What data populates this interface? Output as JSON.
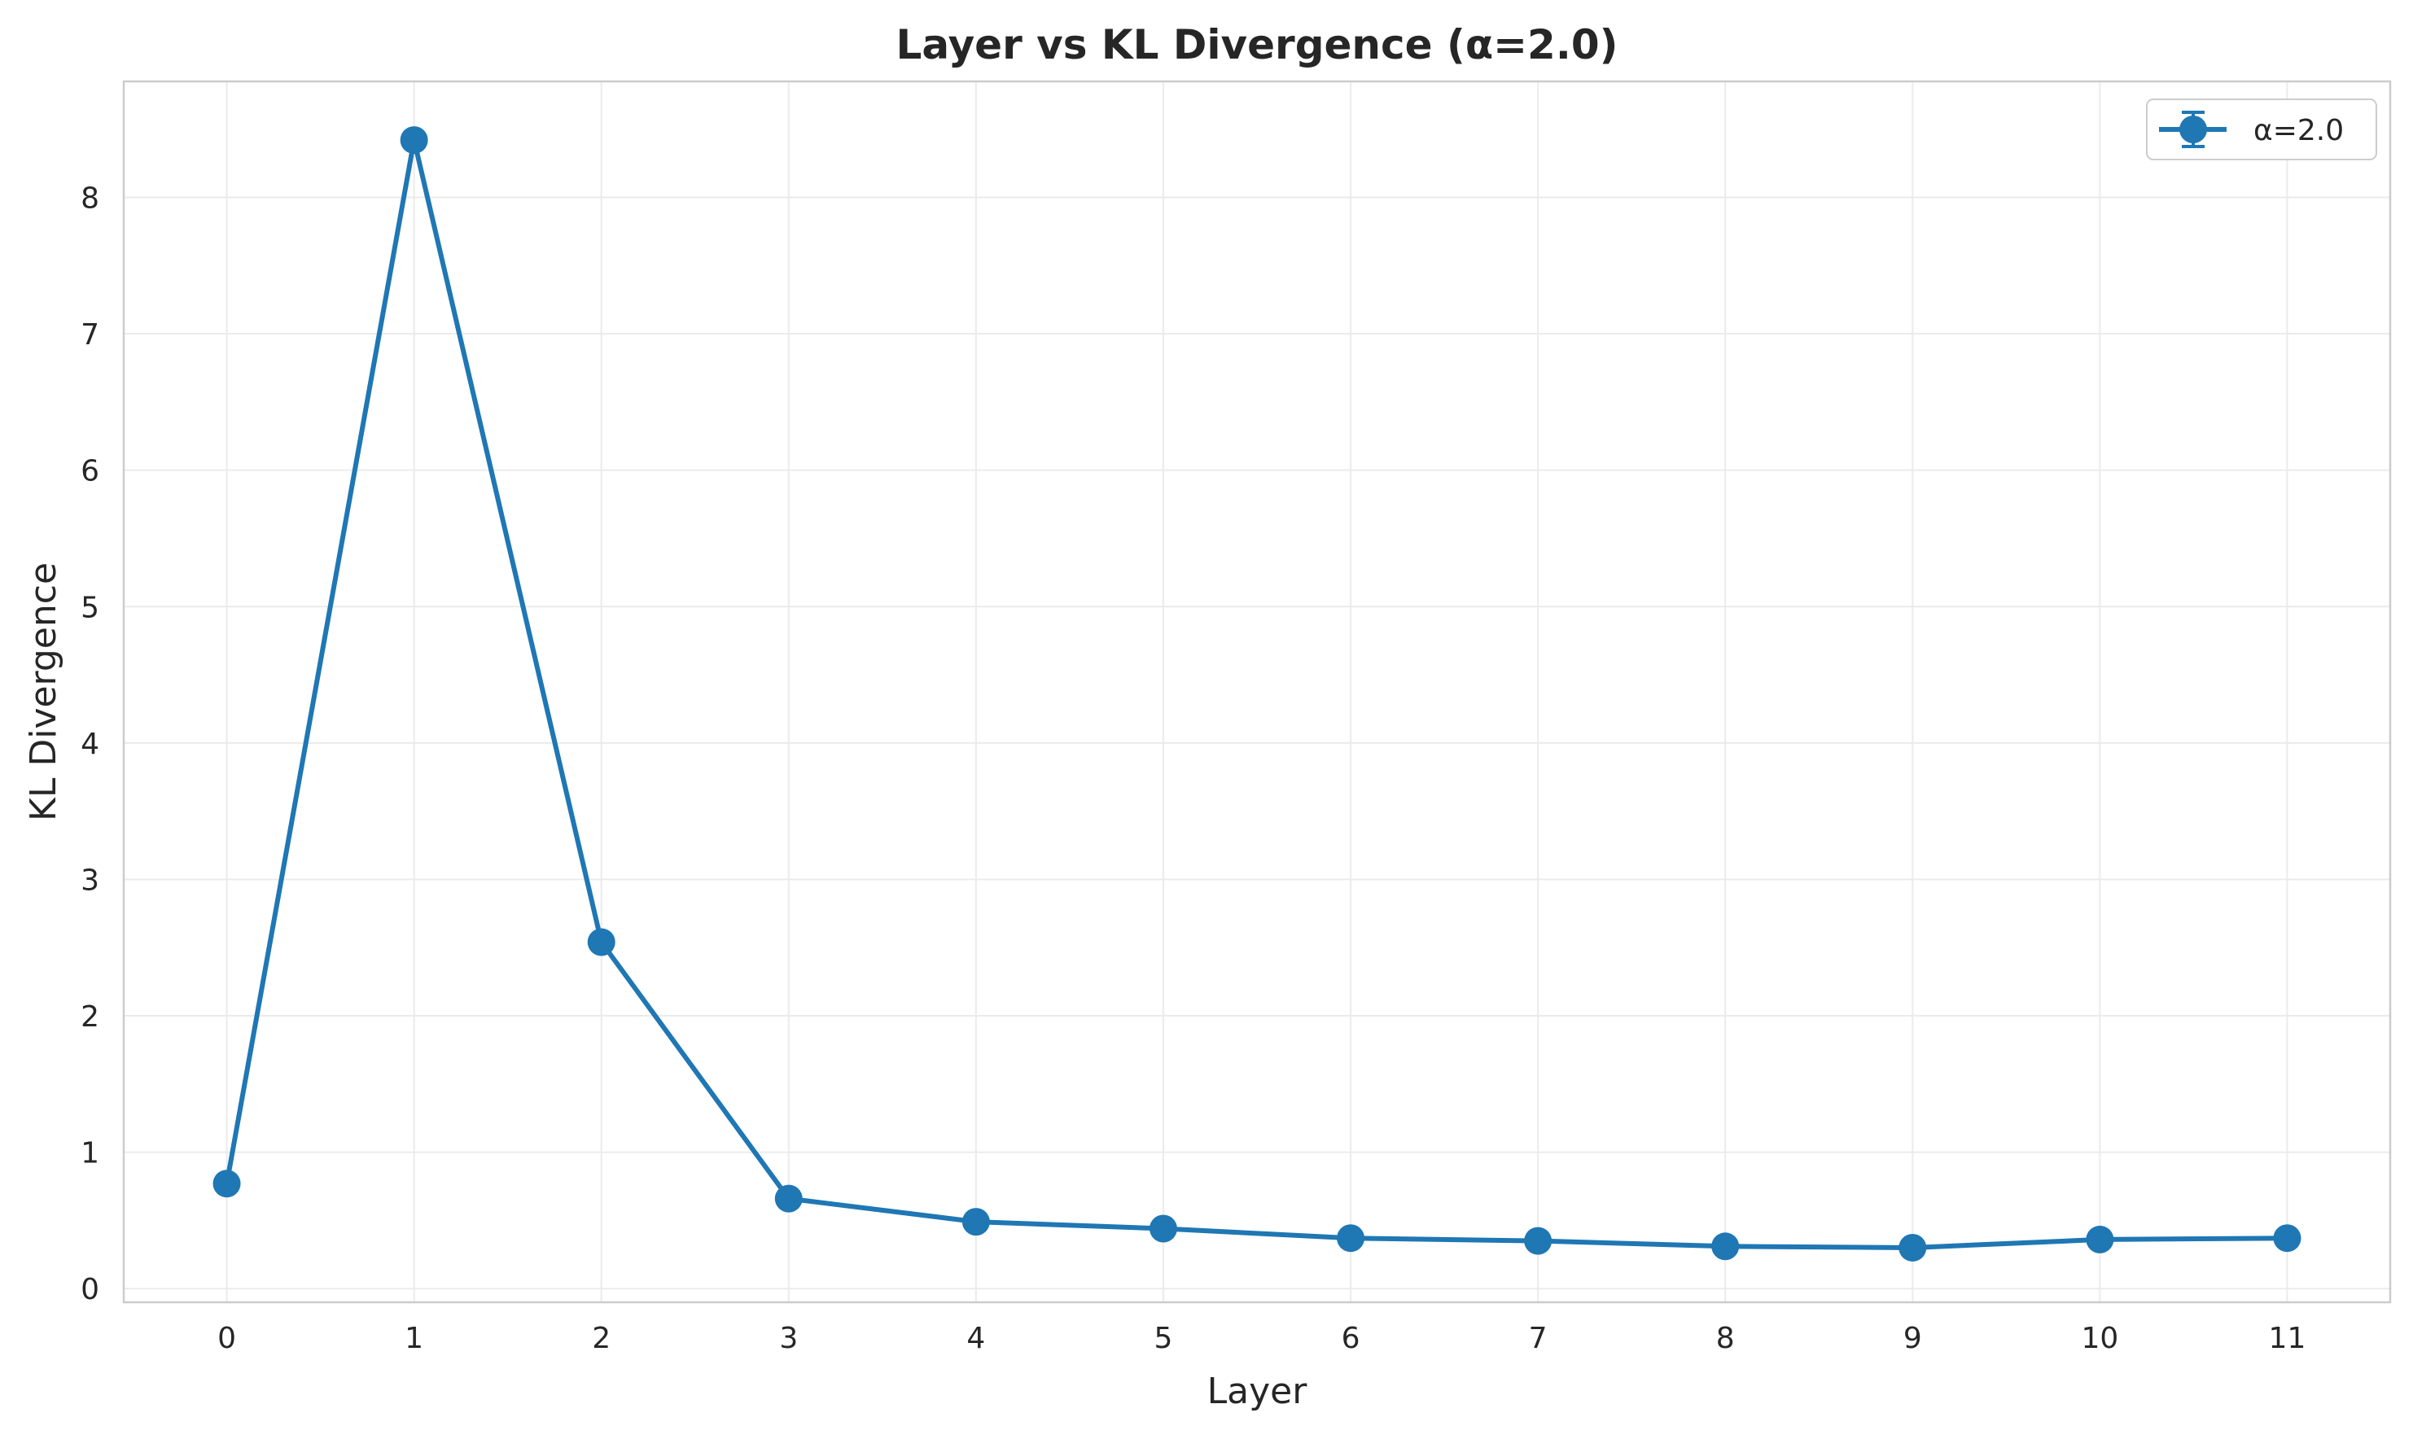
{
  "chart_data": {
    "type": "line",
    "title": "Layer vs KL Divergence (α=2.0)",
    "xlabel": "Layer",
    "ylabel": "KL Divergence",
    "x": [
      0,
      1,
      2,
      3,
      4,
      5,
      6,
      7,
      8,
      9,
      10,
      11
    ],
    "xticks": [
      "0",
      "1",
      "2",
      "3",
      "4",
      "5",
      "6",
      "7",
      "8",
      "9",
      "10",
      "11"
    ],
    "yticks": [
      "0",
      "1",
      "2",
      "3",
      "4",
      "5",
      "6",
      "7",
      "8"
    ],
    "xlim": [
      -0.55,
      11.55
    ],
    "ylim": [
      -0.1,
      8.85
    ],
    "grid": true,
    "legend_position": "top-right",
    "series": [
      {
        "name": "α=2.0",
        "color": "#1f77b4",
        "marker": "circle",
        "error_bars": true,
        "values": [
          0.77,
          8.42,
          2.54,
          0.66,
          0.49,
          0.44,
          0.37,
          0.35,
          0.31,
          0.3,
          0.36,
          0.37
        ]
      }
    ]
  }
}
